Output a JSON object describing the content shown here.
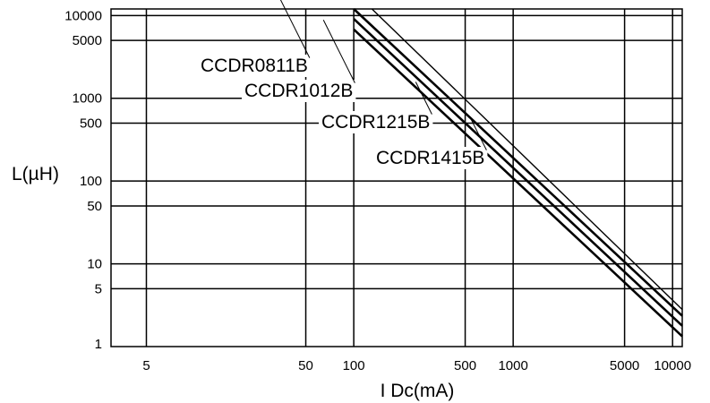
{
  "chart_data": {
    "type": "line",
    "xlabel": "I Dc(mA)",
    "ylabel": "L(µH)",
    "x_scale": "log",
    "y_scale": "log",
    "xlim": [
      3,
      11500
    ],
    "ylim": [
      1,
      12000
    ],
    "grid": true,
    "x_ticks": [
      {
        "value": 5,
        "label": "5"
      },
      {
        "value": 50,
        "label": "50"
      },
      {
        "value": 100,
        "label": "100"
      },
      {
        "value": 500,
        "label": "500"
      },
      {
        "value": 1000,
        "label": "1000"
      },
      {
        "value": 5000,
        "label": "5000"
      },
      {
        "value": 10000,
        "label": "10000"
      }
    ],
    "y_ticks": [
      {
        "value": 1,
        "label": "1"
      },
      {
        "value": 5,
        "label": "5"
      },
      {
        "value": 10,
        "label": "10"
      },
      {
        "value": 50,
        "label": "50"
      },
      {
        "value": 100,
        "label": "100"
      },
      {
        "value": 500,
        "label": "500"
      },
      {
        "value": 1000,
        "label": "1000"
      },
      {
        "value": 5000,
        "label": "5000"
      },
      {
        "value": 10000,
        "label": "10000"
      }
    ],
    "series": [
      {
        "name": "CCDR0811B",
        "x": [
          100,
          11500
        ],
        "y": [
          6800,
          1.33
        ]
      },
      {
        "name": "CCDR1012B",
        "x": [
          100,
          11500
        ],
        "y": [
          9100,
          1.78
        ]
      },
      {
        "name": "CCDR1215B",
        "x": [
          100,
          11500
        ],
        "y": [
          12000,
          2.35
        ]
      },
      {
        "name": "CCDR1415B",
        "x": [
          130,
          11500
        ],
        "y": [
          12000,
          2.8
        ]
      }
    ]
  }
}
